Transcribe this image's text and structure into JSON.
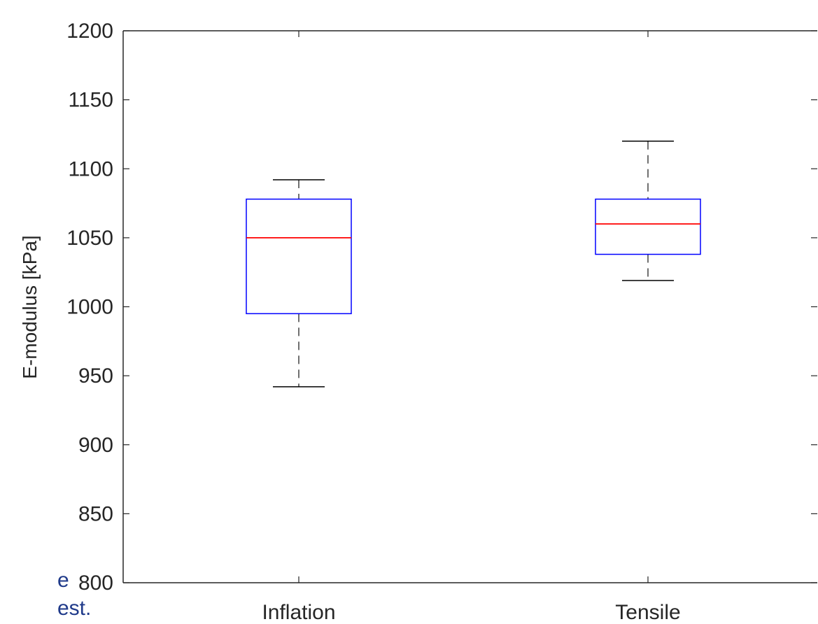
{
  "snippet": {
    "line1": "e",
    "line2": "est."
  },
  "chart_data": {
    "type": "box",
    "ylabel": "E-modulus [kPa]",
    "xlabel": "",
    "title": "",
    "ylim": [
      800,
      1200
    ],
    "yticks": [
      800,
      850,
      900,
      950,
      1000,
      1050,
      1100,
      1150,
      1200
    ],
    "categories": [
      "Inflation",
      "Tensile"
    ],
    "boxes": [
      {
        "label": "Inflation",
        "whisker_low": 942,
        "q1": 995,
        "median": 1050,
        "q3": 1078,
        "whisker_high": 1092
      },
      {
        "label": "Tensile",
        "whisker_low": 1019,
        "q1": 1038,
        "median": 1060,
        "q3": 1078,
        "whisker_high": 1120
      }
    ],
    "grid": false,
    "colors": {
      "box": "#0000ff",
      "median": "#ff0000",
      "whisker": "#404040",
      "axis": "#262626"
    }
  }
}
